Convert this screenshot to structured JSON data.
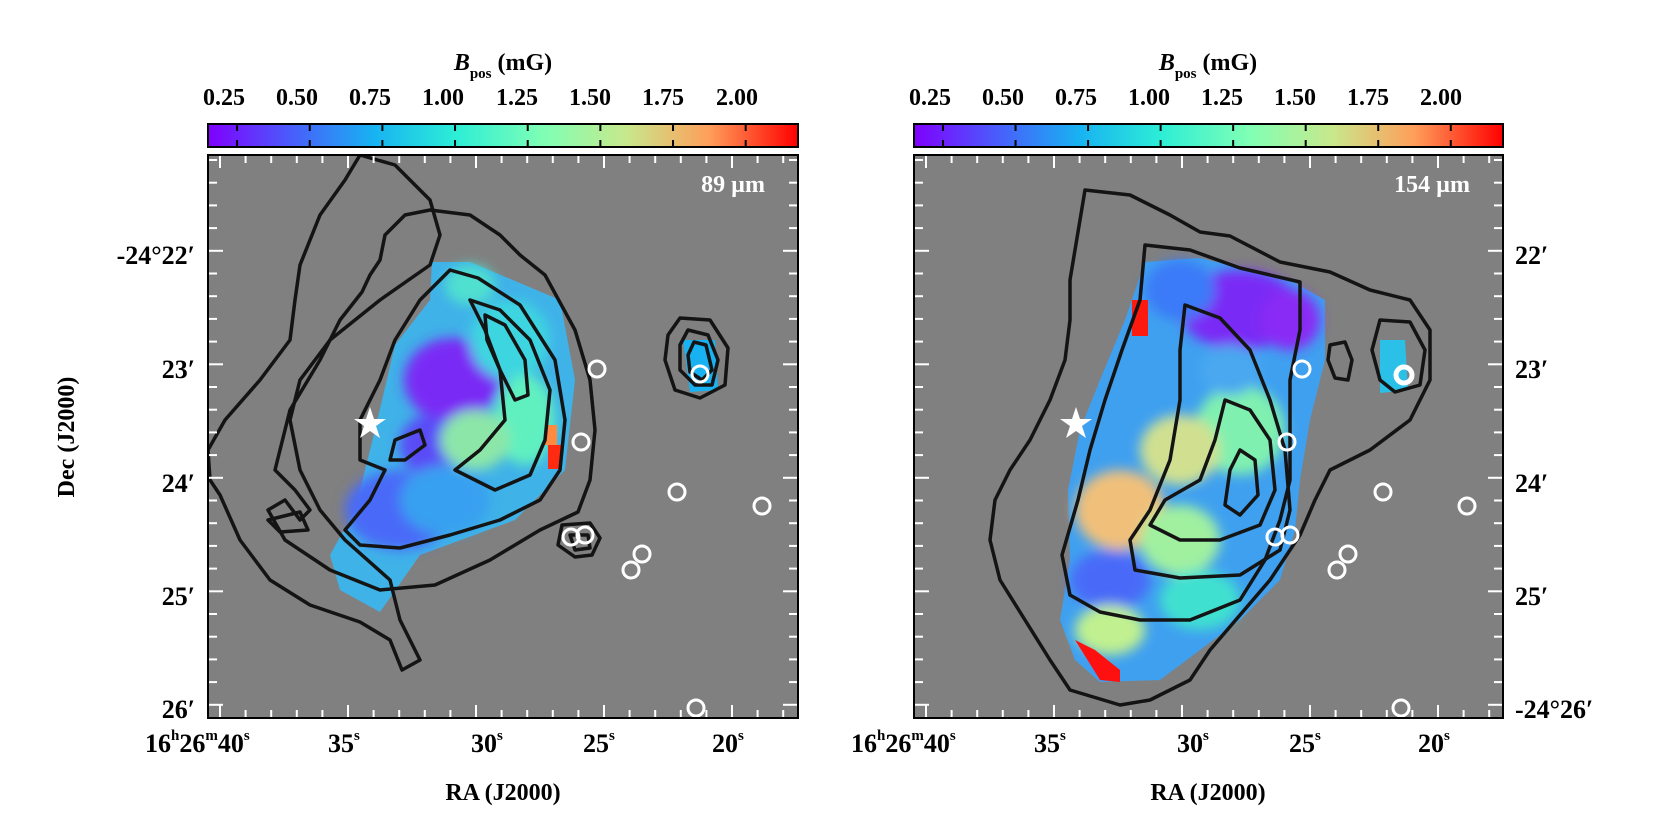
{
  "figure": {
    "colorbar": {
      "label_symbol": "B",
      "label_subscript": "pos",
      "label_unit": "(mG)",
      "ticks": [
        "0.25",
        "0.50",
        "0.75",
        "1.00",
        "1.25",
        "1.50",
        "1.75",
        "2.00"
      ],
      "range": [
        0.15,
        2.18
      ],
      "colormap": "rainbow"
    },
    "xaxis": {
      "label": "RA (J2000)",
      "ticks": [
        {
          "h": "16",
          "m": "26",
          "s": "40"
        },
        {
          "s": "35"
        },
        {
          "s": "30"
        },
        {
          "s": "25"
        },
        {
          "s": "20"
        }
      ]
    },
    "yaxis": {
      "label": "Dec (J2000)",
      "left_ticks": [
        "-24°22′",
        "23′",
        "24′",
        "25′",
        "26′"
      ],
      "right_ticks": [
        "22′",
        "23′",
        "24′",
        "25′",
        "-24°26′"
      ]
    },
    "panels": [
      {
        "wavelength": "89 µm",
        "background": "#808080"
      },
      {
        "wavelength": "154 µm",
        "background": "#808080"
      }
    ],
    "colors": {
      "contour": "#141414",
      "markers": "#ffffff",
      "frame": "#000000"
    }
  }
}
